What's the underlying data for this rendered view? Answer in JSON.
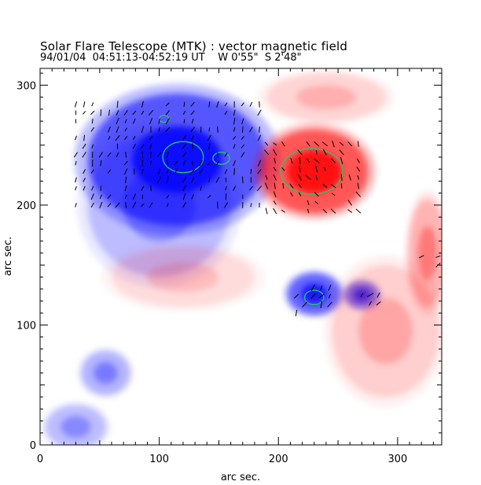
{
  "chart_data": {
    "type": "heatmap",
    "title": "Solar Flare Telescope (MTK) : vector magnetic field",
    "subtitle": "94/01/04  04:51:13-04:52:19 UT    W 0'55\"  S 2'48\"",
    "xlabel": "arc sec.",
    "ylabel": "arc sec.",
    "xlim": [
      0,
      337
    ],
    "ylim": [
      0,
      314
    ],
    "xticks": [
      0,
      100,
      200,
      300
    ],
    "yticks": [
      0,
      100,
      200,
      300
    ],
    "colors": {
      "positive": "#ff0000",
      "negative": "#0000ff",
      "contour": "#22cc66",
      "vectors": "#000000"
    },
    "regions": [
      {
        "polarity": "negative",
        "cx": 115,
        "cy": 238,
        "rx": 75,
        "ry": 55,
        "strength": 1.0
      },
      {
        "polarity": "negative",
        "cx": 100,
        "cy": 200,
        "rx": 60,
        "ry": 60,
        "strength": 0.35
      },
      {
        "polarity": "negative",
        "cx": 230,
        "cy": 126,
        "rx": 22,
        "ry": 17,
        "strength": 0.9
      },
      {
        "polarity": "negative",
        "cx": 270,
        "cy": 125,
        "rx": 14,
        "ry": 11,
        "strength": 0.8
      },
      {
        "polarity": "negative",
        "cx": 55,
        "cy": 60,
        "rx": 20,
        "ry": 18,
        "strength": 0.4
      },
      {
        "polarity": "negative",
        "cx": 30,
        "cy": 15,
        "rx": 25,
        "ry": 18,
        "strength": 0.35
      },
      {
        "polarity": "positive",
        "cx": 230,
        "cy": 228,
        "rx": 45,
        "ry": 35,
        "strength": 1.0
      },
      {
        "polarity": "positive",
        "cx": 325,
        "cy": 160,
        "rx": 16,
        "ry": 45,
        "strength": 0.4
      },
      {
        "polarity": "positive",
        "cx": 290,
        "cy": 95,
        "rx": 45,
        "ry": 55,
        "strength": 0.25
      },
      {
        "polarity": "positive",
        "cx": 240,
        "cy": 290,
        "rx": 50,
        "ry": 20,
        "strength": 0.22
      },
      {
        "polarity": "positive",
        "cx": 120,
        "cy": 140,
        "rx": 60,
        "ry": 25,
        "strength": 0.18
      }
    ],
    "contours": [
      {
        "cx": 120,
        "cy": 240,
        "rx": 17,
        "ry": 13
      },
      {
        "cx": 104,
        "cy": 272,
        "rx": 4,
        "ry": 3
      },
      {
        "cx": 152,
        "cy": 239,
        "rx": 7,
        "ry": 5
      },
      {
        "cx": 228,
        "cy": 228,
        "rx": 26,
        "ry": 19
      },
      {
        "cx": 230,
        "cy": 123,
        "rx": 8,
        "ry": 6
      }
    ],
    "vector_groups": [
      {
        "x0": 30,
        "x1": 190,
        "y0": 200,
        "y1": 290,
        "angle": 70
      },
      {
        "x0": 190,
        "x1": 270,
        "y0": 195,
        "y1": 255,
        "angle": 120
      },
      {
        "x0": 215,
        "x1": 245,
        "y0": 110,
        "y1": 135,
        "angle": 60
      },
      {
        "x0": 270,
        "x1": 285,
        "y0": 118,
        "y1": 126,
        "angle": 45
      },
      {
        "x0": 320,
        "x1": 337,
        "y0": 150,
        "y1": 160,
        "angle": 40
      }
    ]
  }
}
